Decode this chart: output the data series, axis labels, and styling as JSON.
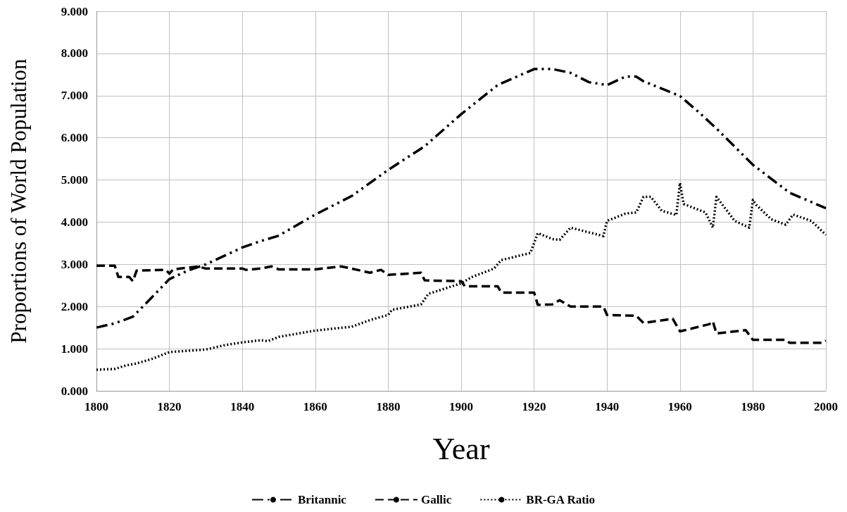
{
  "chart_data": {
    "type": "line",
    "xlabel": "Year",
    "ylabel": "Proportions of World Population",
    "xlim": [
      1800,
      2000
    ],
    "xticks": [
      1800,
      1820,
      1840,
      1860,
      1880,
      1900,
      1920,
      1940,
      1960,
      1980,
      2000
    ],
    "ylim": [
      0,
      9
    ],
    "yticks": [
      {
        "value": 0,
        "label": "0.000"
      },
      {
        "value": 1,
        "label": "1.000"
      },
      {
        "value": 2,
        "label": "2.000"
      },
      {
        "value": 3,
        "label": "3.000"
      },
      {
        "value": 4,
        "label": "4.000"
      },
      {
        "value": 5,
        "label": "5.000"
      },
      {
        "value": 6,
        "label": "6.000"
      },
      {
        "value": 7,
        "label": "7.000"
      },
      {
        "value": 8,
        "label": "8.000"
      },
      {
        "value": 9,
        "label": "9.000"
      }
    ],
    "grid": true,
    "legend": "bottom",
    "marker": "none",
    "series": [
      {
        "name": "Britannic",
        "color": "#000000",
        "line_style": "dashdot",
        "x": [
          1800,
          1805,
          1810,
          1815,
          1820,
          1825,
          1830,
          1835,
          1840,
          1845,
          1850,
          1860,
          1870,
          1880,
          1890,
          1900,
          1910,
          1920,
          1925,
          1930,
          1935,
          1940,
          1945,
          1948,
          1950,
          1960,
          1965,
          1970,
          1980,
          1990,
          2000
        ],
        "values": [
          1.5,
          1.6,
          1.76,
          2.2,
          2.65,
          2.85,
          3.0,
          3.2,
          3.4,
          3.55,
          3.68,
          4.18,
          4.62,
          5.24,
          5.8,
          6.56,
          7.25,
          7.63,
          7.63,
          7.54,
          7.32,
          7.25,
          7.45,
          7.45,
          7.34,
          6.99,
          6.62,
          6.22,
          5.36,
          4.7,
          4.33
        ]
      },
      {
        "name": "Gallic",
        "color": "#000000",
        "line_style": "dashed",
        "x": [
          1800,
          1805,
          1806,
          1809,
          1810,
          1811,
          1819,
          1820,
          1821,
          1828,
          1830,
          1840,
          1841,
          1845,
          1848,
          1850,
          1860,
          1862,
          1867,
          1870,
          1875,
          1878,
          1880,
          1889,
          1890,
          1900,
          1901,
          1910,
          1911,
          1920,
          1921,
          1925,
          1927,
          1930,
          1939,
          1940,
          1948,
          1950,
          1958,
          1960,
          1968,
          1969,
          1970,
          1978,
          1980,
          1989,
          1990,
          1999,
          2000
        ],
        "values": [
          2.97,
          2.97,
          2.7,
          2.7,
          2.6,
          2.85,
          2.87,
          2.78,
          2.88,
          2.95,
          2.9,
          2.9,
          2.87,
          2.9,
          2.95,
          2.88,
          2.88,
          2.9,
          2.95,
          2.9,
          2.8,
          2.87,
          2.75,
          2.8,
          2.62,
          2.6,
          2.48,
          2.48,
          2.33,
          2.33,
          2.04,
          2.05,
          2.15,
          2.0,
          2.0,
          1.8,
          1.78,
          1.61,
          1.71,
          1.41,
          1.58,
          1.65,
          1.36,
          1.44,
          1.21,
          1.21,
          1.14,
          1.14,
          1.19
        ]
      },
      {
        "name": "BR-GA Ratio",
        "color": "#000000",
        "line_style": "dotted",
        "x": [
          1800,
          1805,
          1808,
          1811,
          1815,
          1820,
          1830,
          1835,
          1840,
          1845,
          1847,
          1850,
          1860,
          1870,
          1875,
          1880,
          1881,
          1889,
          1891,
          1900,
          1903,
          1909,
          1911,
          1919,
          1921,
          1925,
          1927,
          1930,
          1939,
          1940,
          1945,
          1948,
          1950,
          1952,
          1955,
          1959,
          1960,
          1961,
          1967,
          1969,
          1970,
          1975,
          1979,
          1980,
          1981,
          1985,
          1989,
          1991,
          1996,
          2000
        ],
        "values": [
          0.5,
          0.52,
          0.6,
          0.65,
          0.75,
          0.92,
          0.98,
          1.08,
          1.15,
          1.2,
          1.18,
          1.28,
          1.43,
          1.52,
          1.68,
          1.8,
          1.92,
          2.05,
          2.3,
          2.55,
          2.7,
          2.9,
          3.1,
          3.27,
          3.74,
          3.6,
          3.58,
          3.87,
          3.67,
          4.03,
          4.2,
          4.23,
          4.6,
          4.6,
          4.27,
          4.17,
          4.93,
          4.43,
          4.23,
          3.87,
          4.6,
          4.03,
          3.87,
          4.53,
          4.4,
          4.07,
          3.94,
          4.18,
          4.03,
          3.7
        ]
      }
    ]
  }
}
